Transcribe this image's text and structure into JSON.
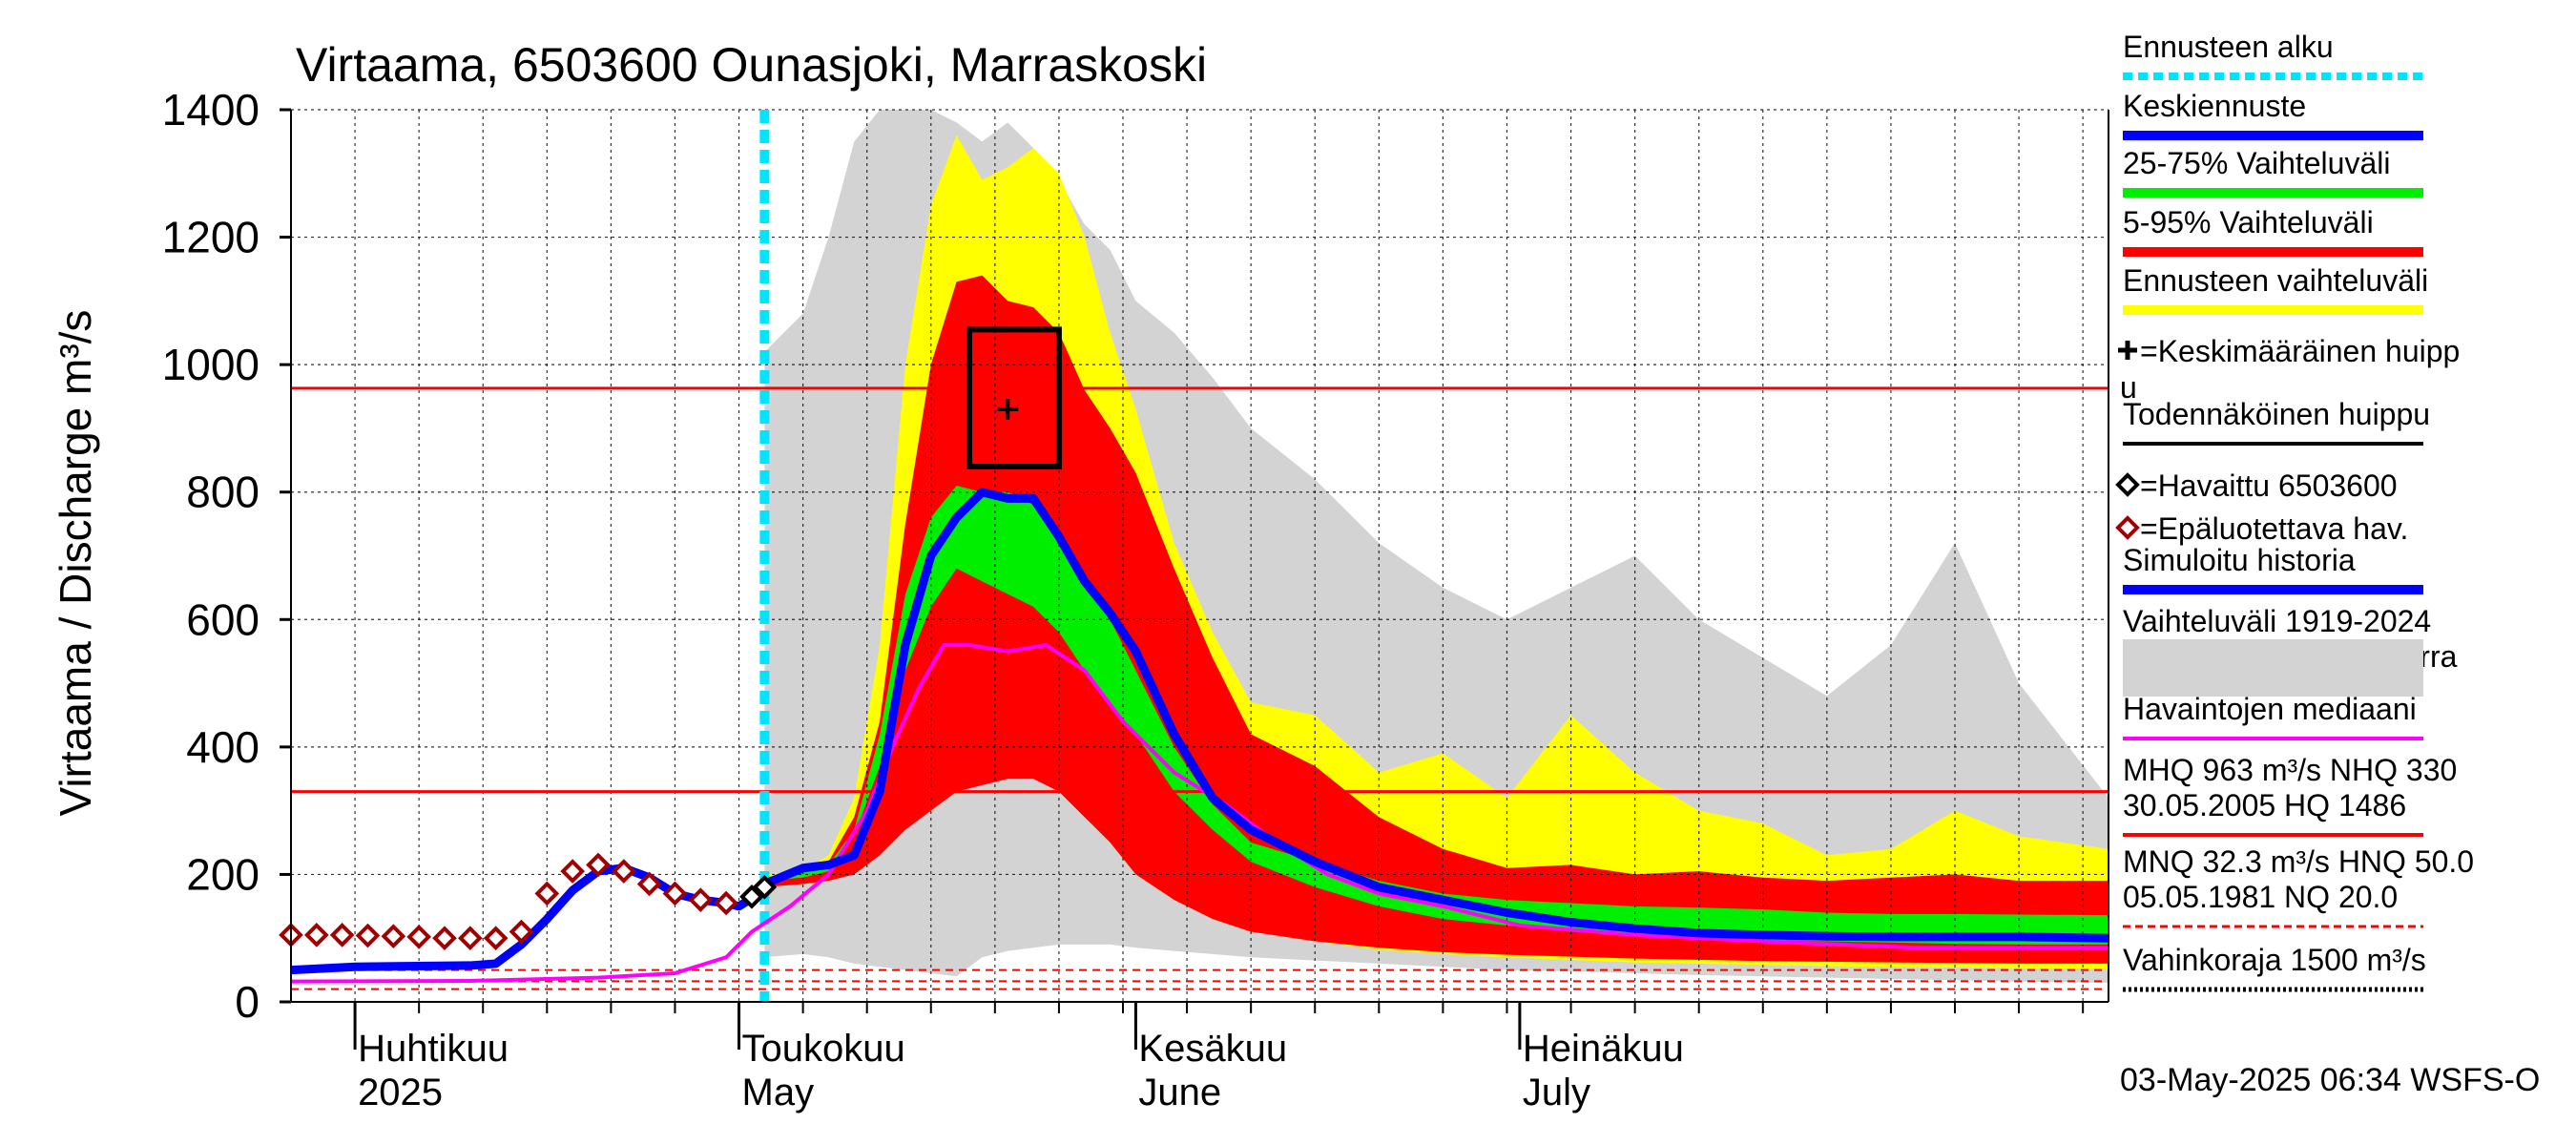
{
  "chart_data": {
    "type": "area",
    "title": "Virtaama, 6503600 Ounasjoki, Marraskoski",
    "ylabel": "Virtaama / Discharge   m³/s",
    "ylim": [
      0,
      1400
    ],
    "y_ticks": [
      0,
      200,
      400,
      600,
      800,
      1000,
      1200,
      1400
    ],
    "y_tick_labels": [
      "0",
      "200",
      "400",
      "600",
      "800",
      "1000",
      "1200",
      "1400"
    ],
    "x_start": "2025-03-27",
    "x_end": "2025-08-16",
    "month_labels": [
      {
        "date": "2025-04-01",
        "fi": "Huhtikuu",
        "en": "2025"
      },
      {
        "date": "2025-05-01",
        "fi": "Toukokuu",
        "en": "May"
      },
      {
        "date": "2025-06-01",
        "fi": "Kesäkuu",
        "en": "June"
      },
      {
        "date": "2025-07-01",
        "fi": "Heinäkuu",
        "en": "July"
      }
    ],
    "forecast_start": "2025-05-03",
    "threshold_lines": [
      {
        "name": "MHQ",
        "value": 963,
        "style": "solid"
      },
      {
        "name": "NHQ",
        "value": 330,
        "style": "solid"
      },
      {
        "name": "MNQ",
        "value": 32.3,
        "style": "dashed"
      },
      {
        "name": "HNQ",
        "value": 50.0,
        "style": "dashed"
      },
      {
        "name": "NQ",
        "value": 20.0,
        "style": "dashed"
      }
    ],
    "probable_peak": {
      "date_from": "2025-05-19",
      "date_to": "2025-05-26",
      "q_low": 840,
      "q_high": 1055
    },
    "mean_peak": {
      "date": "2025-05-22",
      "value": 930
    },
    "band_dates": [
      "2025-05-03",
      "2025-05-06",
      "2025-05-08",
      "2025-05-10",
      "2025-05-12",
      "2025-05-14",
      "2025-05-16",
      "2025-05-18",
      "2025-05-20",
      "2025-05-22",
      "2025-05-24",
      "2025-05-26",
      "2025-05-28",
      "2025-05-30",
      "2025-06-01",
      "2025-06-04",
      "2025-06-07",
      "2025-06-10",
      "2025-06-15",
      "2025-06-20",
      "2025-06-25",
      "2025-06-30",
      "2025-07-05",
      "2025-07-10",
      "2025-07-15",
      "2025-07-20",
      "2025-07-25",
      "2025-07-30",
      "2025-08-04",
      "2025-08-09",
      "2025-08-16"
    ],
    "series": [
      {
        "name": "Vaihteluväli 1919-2024 Havaintoasema 65marra",
        "color": "#d3d3d3",
        "low": [
          70,
          75,
          70,
          60,
          55,
          50,
          45,
          40,
          70,
          80,
          85,
          90,
          90,
          90,
          85,
          80,
          75,
          70,
          65,
          60,
          55,
          50,
          48,
          45,
          42,
          40,
          38,
          36,
          34,
          32,
          30
        ],
        "high": [
          1020,
          1080,
          1200,
          1350,
          1400,
          1400,
          1400,
          1380,
          1350,
          1380,
          1340,
          1290,
          1220,
          1180,
          1100,
          1050,
          980,
          900,
          820,
          720,
          650,
          600,
          650,
          700,
          600,
          540,
          480,
          560,
          720,
          500,
          320
        ]
      },
      {
        "name": "Ennusteen vaihteluväli",
        "color": "#ffff00",
        "low": [
          180,
          185,
          200,
          240,
          300,
          380,
          460,
          470,
          460,
          440,
          410,
          360,
          300,
          250,
          200,
          160,
          130,
          110,
          95,
          82,
          75,
          70,
          66,
          62,
          60,
          58,
          56,
          55,
          54,
          53,
          52
        ],
        "high": [
          200,
          205,
          230,
          320,
          560,
          1000,
          1250,
          1360,
          1290,
          1310,
          1340,
          1300,
          1200,
          1050,
          930,
          720,
          580,
          470,
          450,
          360,
          390,
          320,
          450,
          360,
          300,
          280,
          230,
          240,
          300,
          260,
          240
        ]
      },
      {
        "name": "5-95% Vaihteluväli",
        "color": "#ff0000",
        "low": [
          180,
          185,
          190,
          200,
          230,
          270,
          300,
          330,
          340,
          350,
          350,
          330,
          290,
          250,
          200,
          160,
          130,
          110,
          95,
          85,
          78,
          74,
          71,
          68,
          66,
          64,
          63,
          62,
          61,
          60,
          60
        ],
        "high": [
          190,
          200,
          220,
          290,
          440,
          750,
          1000,
          1130,
          1140,
          1100,
          1090,
          1050,
          960,
          900,
          830,
          680,
          540,
          420,
          370,
          290,
          240,
          210,
          215,
          200,
          205,
          195,
          190,
          195,
          200,
          190,
          190
        ]
      },
      {
        "name": "25-75% Vaihteluväli",
        "color": "#00ee00",
        "low": [
          190,
          195,
          205,
          260,
          370,
          520,
          620,
          680,
          660,
          640,
          620,
          580,
          520,
          470,
          420,
          330,
          270,
          220,
          180,
          150,
          130,
          120,
          110,
          105,
          100,
          97,
          95,
          93,
          91,
          90,
          90
        ],
        "high": [
          195,
          205,
          215,
          270,
          420,
          640,
          760,
          810,
          800,
          800,
          780,
          720,
          660,
          600,
          520,
          400,
          310,
          250,
          220,
          190,
          170,
          160,
          155,
          150,
          148,
          145,
          140,
          138,
          138,
          137,
          136
        ]
      }
    ],
    "keskiennuste": {
      "name": "Keskiennuste",
      "color": "#0000ff",
      "x": [
        "2025-05-03",
        "2025-05-06",
        "2025-05-08",
        "2025-05-10",
        "2025-05-12",
        "2025-05-14",
        "2025-05-16",
        "2025-05-18",
        "2025-05-20",
        "2025-05-22",
        "2025-05-24",
        "2025-05-26",
        "2025-05-28",
        "2025-05-30",
        "2025-06-01",
        "2025-06-04",
        "2025-06-07",
        "2025-06-10",
        "2025-06-15",
        "2025-06-20",
        "2025-06-25",
        "2025-06-30",
        "2025-07-05",
        "2025-07-10",
        "2025-07-15",
        "2025-07-20",
        "2025-07-25",
        "2025-07-30",
        "2025-08-04",
        "2025-08-09",
        "2025-08-16"
      ],
      "y": [
        185,
        210,
        215,
        230,
        330,
        560,
        700,
        760,
        800,
        790,
        790,
        730,
        660,
        610,
        550,
        420,
        320,
        270,
        220,
        180,
        160,
        140,
        125,
        115,
        108,
        105,
        103,
        102,
        102,
        102,
        100
      ]
    },
    "simuloitu_historia": {
      "name": "Simuloitu historia",
      "color": "#0000ff",
      "x": [
        "2025-03-27",
        "2025-04-01",
        "2025-04-05",
        "2025-04-10",
        "2025-04-12",
        "2025-04-14",
        "2025-04-16",
        "2025-04-18",
        "2025-04-20",
        "2025-04-22",
        "2025-04-24",
        "2025-04-26",
        "2025-04-28",
        "2025-04-30",
        "2025-05-01",
        "2025-05-03"
      ],
      "y": [
        50,
        55,
        56,
        57,
        60,
        90,
        130,
        175,
        205,
        210,
        195,
        170,
        160,
        155,
        150,
        175
      ]
    },
    "havaittu": {
      "name": "=Havaittu 6503600",
      "color": "#000000",
      "x": [
        "2025-05-02",
        "2025-05-03"
      ],
      "y": [
        165,
        180
      ]
    },
    "epaluotettava": {
      "name": "=Epäluotettava hav.",
      "color": "#a00000",
      "x": [
        "2025-03-27",
        "2025-03-29",
        "2025-03-31",
        "2025-04-02",
        "2025-04-04",
        "2025-04-06",
        "2025-04-08",
        "2025-04-10",
        "2025-04-12",
        "2025-04-14",
        "2025-04-16",
        "2025-04-18",
        "2025-04-20",
        "2025-04-22",
        "2025-04-24",
        "2025-04-26",
        "2025-04-28",
        "2025-04-30"
      ],
      "y": [
        105,
        105,
        105,
        104,
        103,
        102,
        100,
        100,
        100,
        110,
        170,
        205,
        215,
        205,
        185,
        170,
        160,
        155
      ]
    },
    "mediaani": {
      "name": "Havaintojen mediaani",
      "color": "#ff00ff",
      "x": [
        "2025-03-27",
        "2025-04-10",
        "2025-04-20",
        "2025-04-26",
        "2025-04-30",
        "2025-05-02",
        "2025-05-05",
        "2025-05-08",
        "2025-05-11",
        "2025-05-13",
        "2025-05-15",
        "2025-05-17",
        "2025-05-19",
        "2025-05-22",
        "2025-05-25",
        "2025-05-28",
        "2025-05-31",
        "2025-06-04",
        "2025-06-08",
        "2025-06-12",
        "2025-06-16",
        "2025-06-20",
        "2025-06-25",
        "2025-07-01",
        "2025-07-10",
        "2025-07-20",
        "2025-08-01",
        "2025-08-16"
      ],
      "y": [
        32,
        33,
        38,
        45,
        70,
        110,
        150,
        200,
        300,
        400,
        490,
        560,
        560,
        550,
        560,
        520,
        440,
        360,
        310,
        250,
        200,
        170,
        150,
        120,
        105,
        95,
        85,
        85
      ]
    },
    "legend_position": "right",
    "legend": [
      {
        "label": "Ennusteen alku",
        "color": "#00e5ff",
        "kind": "dotted-thick"
      },
      {
        "label": "Keskiennuste",
        "color": "#0000ff",
        "kind": "line"
      },
      {
        "label": "25-75% Vaihteluväli",
        "color": "#00ee00",
        "kind": "line"
      },
      {
        "label": "5-95% Vaihteluväli",
        "color": "#ff0000",
        "kind": "line"
      },
      {
        "label": "Ennusteen vaihteluväli",
        "color": "#ffff00",
        "kind": "line"
      },
      {
        "label": "=Keskimääräinen huipp",
        "label2": "u",
        "color": "#000000",
        "kind": "plus"
      },
      {
        "label": "Todennäköinen huippu",
        "color": "#000000",
        "kind": "line-thin"
      },
      {
        "label": "=Havaittu 6503600",
        "color": "#000000",
        "kind": "diamond"
      },
      {
        "label": "=Epäluotettava hav.",
        "color": "#a00000",
        "kind": "diamond"
      },
      {
        "label": "Simuloitu historia",
        "color": "#0000ff",
        "kind": "line"
      },
      {
        "label": "Vaihteluväli 1919-2024",
        "label2": " Havaintoasema 65marra",
        "color": "#d3d3d3",
        "kind": "line"
      },
      {
        "label": "Havaintojen mediaani",
        "color": "#ff00ff",
        "kind": "line-thin"
      },
      {
        "label": "MHQ  963 m³/s NHQ  330",
        "label2": "30.05.2005 HQ 1486",
        "color": "#ff0000",
        "kind": "line-thin"
      },
      {
        "label": "MNQ 32.3 m³/s HNQ 50.0",
        "label2": "05.05.1981 NQ 20.0",
        "color": "#ff0000",
        "kind": "dashed"
      },
      {
        "label": "Vahinkoraja 1500 m³/s",
        "color": "#000000",
        "kind": "dotted"
      }
    ]
  },
  "footer": {
    "timestamp": "03-May-2025 06:34 WSFS-O"
  }
}
